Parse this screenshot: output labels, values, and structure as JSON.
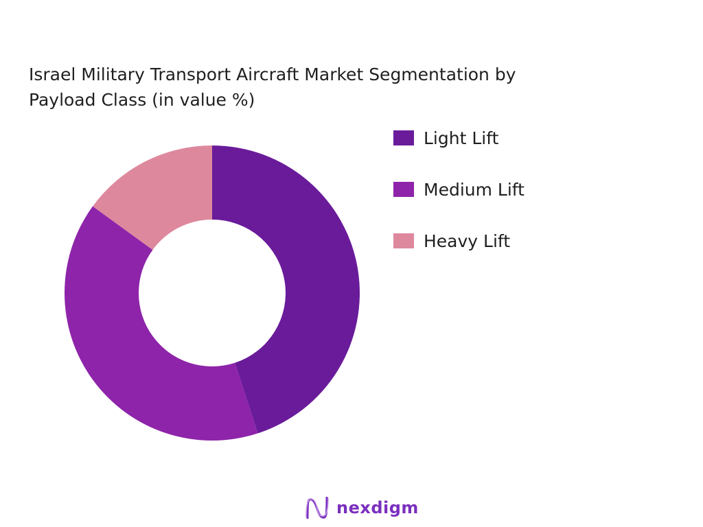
{
  "chart_data": {
    "type": "pie",
    "donut": true,
    "title": "Israel Military Transport Aircraft Market Segmentation by Payload Class (in value %)",
    "categories": [
      "Light Lift",
      "Medium Lift",
      "Heavy Lift"
    ],
    "values": [
      45,
      40,
      15
    ],
    "colors": [
      "#6a1b9a",
      "#8e24aa",
      "#de889e"
    ],
    "legend_position": "right"
  },
  "brand": {
    "name": "nexdigm"
  }
}
